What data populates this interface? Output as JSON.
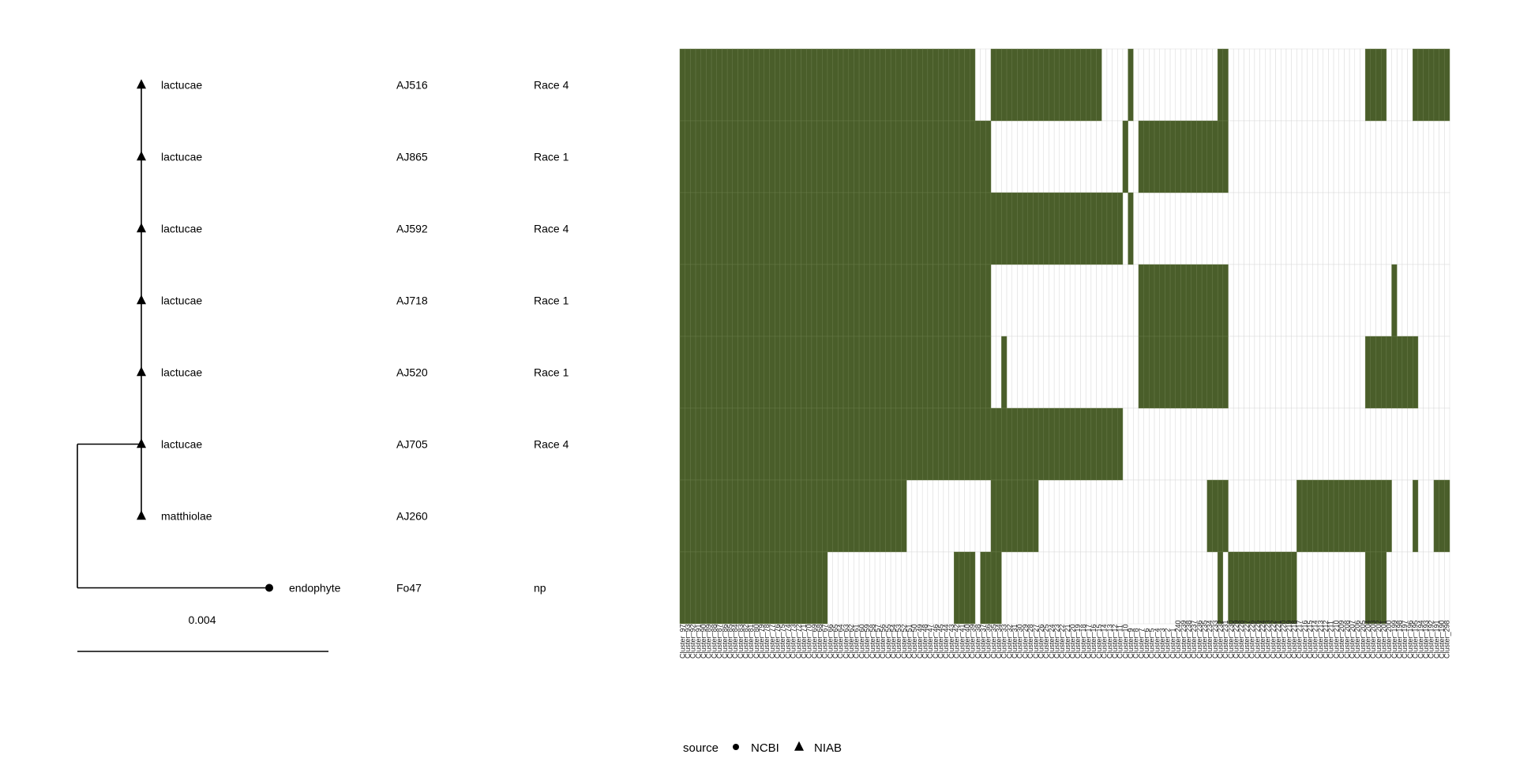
{
  "chart_data": {
    "type": "heatmap",
    "colors": {
      "present": "#4a5e2a",
      "absent": "#ffffff",
      "grid": "#d9d9d9",
      "tree": "#000000"
    },
    "tree": {
      "rows": [
        {
          "species": "lactucae",
          "isolate": "AJ516",
          "race": "Race 4",
          "source": "NIAB"
        },
        {
          "species": "lactucae",
          "isolate": "AJ865",
          "race": "Race 1",
          "source": "NIAB"
        },
        {
          "species": "lactucae",
          "isolate": "AJ592",
          "race": "Race 4",
          "source": "NIAB"
        },
        {
          "species": "lactucae",
          "isolate": "AJ718",
          "race": "Race 1",
          "source": "NIAB"
        },
        {
          "species": "lactucae",
          "isolate": "AJ520",
          "race": "Race 1",
          "source": "NIAB"
        },
        {
          "species": "lactucae",
          "isolate": "AJ705",
          "race": "Race 4",
          "source": "NIAB"
        },
        {
          "species": "matthiolae",
          "isolate": "AJ260",
          "race": "",
          "source": "NIAB"
        },
        {
          "species": "endophyte",
          "isolate": "Fo47",
          "race": "np",
          "source": "NCBI"
        }
      ],
      "scale_label": "0.004"
    },
    "legend": {
      "title": "source",
      "items": [
        {
          "label": "NCBI",
          "shape": "circle"
        },
        {
          "label": "NIAB",
          "shape": "triangle"
        }
      ]
    },
    "n_columns": 146,
    "column_labels": [
      "Cluster_97",
      "Cluster_93",
      "Cluster_92",
      "Cluster_91",
      "Cluster_90",
      "Cluster_89",
      "Cluster_88",
      "Cluster_87",
      "Cluster_86",
      "Cluster_85",
      "Cluster_84",
      "Cluster_83",
      "Cluster_82",
      "Cluster_81",
      "Cluster_80",
      "Cluster_79",
      "Cluster_78",
      "Cluster_77",
      "Cluster_76",
      "Cluster_75",
      "Cluster_74",
      "Cluster_73",
      "Cluster_72",
      "Cluster_71",
      "Cluster_70",
      "Cluster_69",
      "Cluster_68",
      "Cluster_67",
      "Cluster_66",
      "Cluster_65",
      "Cluster_64",
      "Cluster_63",
      "Cluster_62",
      "Cluster_61",
      "Cluster_60",
      "Cluster_59",
      "Cluster_58",
      "Cluster_57",
      "Cluster_56",
      "Cluster_55",
      "Cluster_54",
      "Cluster_53",
      "Cluster_52",
      "Cluster_51",
      "Cluster_50",
      "Cluster_49",
      "Cluster_48",
      "Cluster_47",
      "Cluster_46",
      "Cluster_45",
      "Cluster_44",
      "Cluster_43",
      "Cluster_42",
      "Cluster_41",
      "Cluster_40",
      "Cluster_39",
      "Cluster_38",
      "Cluster_37",
      "Cluster_36",
      "Cluster_35",
      "Cluster_34",
      "Cluster_33",
      "Cluster_32",
      "Cluster_31",
      "Cluster_30",
      "Cluster_29",
      "Cluster_28",
      "Cluster_27",
      "Cluster_26",
      "Cluster_25",
      "Cluster_24",
      "Cluster_23",
      "Cluster_22",
      "Cluster_21",
      "Cluster_20",
      "Cluster_19",
      "Cluster_18",
      "Cluster_17",
      "Cluster_16",
      "Cluster_15",
      "Cluster_14",
      "Cluster_13",
      "Cluster_12",
      "Cluster_11",
      "Cluster_10",
      "Cluster_9",
      "Cluster_8",
      "Cluster_7",
      "Cluster_6",
      "Cluster_5",
      "Cluster_4",
      "Cluster_3",
      "Cluster_2",
      "Cluster_1",
      "Cluster_240",
      "Cluster_239",
      "Cluster_238",
      "Cluster_237",
      "Cluster_236",
      "Cluster_235",
      "Cluster_234",
      "Cluster_233",
      "Cluster_232",
      "Cluster_231",
      "Cluster_230",
      "Cluster_229",
      "Cluster_228",
      "Cluster_227",
      "Cluster_226",
      "Cluster_225",
      "Cluster_224",
      "Cluster_223",
      "Cluster_222",
      "Cluster_221",
      "Cluster_220",
      "Cluster_219",
      "Cluster_218",
      "Cluster_217",
      "Cluster_216",
      "Cluster_215",
      "Cluster_214",
      "Cluster_213",
      "Cluster_212",
      "Cluster_211",
      "Cluster_210",
      "Cluster_209",
      "Cluster_208",
      "Cluster_207",
      "Cluster_206",
      "Cluster_205",
      "Cluster_204",
      "Cluster_203",
      "Cluster_202",
      "Cluster_201",
      "Cluster_200",
      "Cluster_199",
      "Cluster_198",
      "Cluster_197",
      "Cluster_196",
      "Cluster_195",
      "Cluster_194",
      "Cluster_193",
      "Cluster_192",
      "Cluster_191",
      "Cluster_190",
      "Cluster_298"
    ],
    "presence_runs": [
      [
        [
          0,
          56
        ],
        [
          59,
          80
        ],
        [
          85,
          86
        ],
        [
          102,
          104
        ],
        [
          130,
          134
        ],
        [
          139,
          146
        ]
      ],
      [
        [
          0,
          59
        ],
        [
          84,
          85
        ],
        [
          87,
          104
        ]
      ],
      [
        [
          0,
          84
        ],
        [
          85,
          86
        ]
      ],
      [
        [
          0,
          59
        ],
        [
          87,
          104
        ],
        [
          135,
          136
        ]
      ],
      [
        [
          0,
          59
        ],
        [
          61,
          62
        ],
        [
          87,
          104
        ],
        [
          130,
          140
        ]
      ],
      [
        [
          0,
          84
        ]
      ],
      [
        [
          0,
          43
        ],
        [
          59,
          68
        ],
        [
          100,
          104
        ],
        [
          117,
          135
        ],
        [
          139,
          140
        ],
        [
          143,
          146
        ]
      ],
      [
        [
          0,
          28
        ],
        [
          52,
          56
        ],
        [
          57,
          61
        ],
        [
          102,
          103
        ],
        [
          104,
          117
        ],
        [
          130,
          134
        ]
      ]
    ]
  }
}
